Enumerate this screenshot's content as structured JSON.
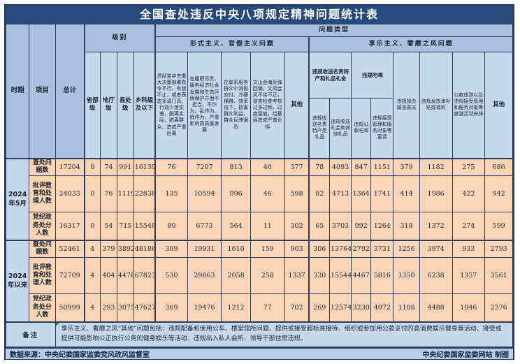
{
  "title": "全国查处违反中央八项规定精神问题统计表",
  "chart_data": {
    "type": "table",
    "title": "全国查处违反中央八项规定精神问题统计表",
    "header": {
      "period": "时期",
      "item": "项目",
      "total": "总计",
      "level": {
        "label": "级别",
        "columns": [
          "省部级",
          "地厅级",
          "县处级",
          "乡科级及以下"
        ]
      },
      "problem_type": {
        "label": "问题类型",
        "groups": [
          {
            "label": "形式主义、官僚主义问题",
            "columns": [
              "贯彻党中央重大决策部署有令不行、有禁不止，或者表态多调门高、行动少落实差，脱离实际、脱离群众，造成严重后果",
              "在履职尽责、服务经济社会发展和生态环境保护方面不担当、不作为、乱作为、假作为，严重影响高质量发展",
              "在联系服务群众中消极应付、冷硬横推、效率低下，损害群众利益，群众反映强烈",
              "文山会海反弹回潮，文风会风不实不正，督查检查考核过多过频、过度留痕，给基层造成严重负担",
              "其他"
            ]
          },
          {
            "label": "享乐主义、奢靡之风问题",
            "subgroups": [
              {
                "label": "违规收送名贵特产和礼品礼金",
                "columns": [
                  "违规收送名贵特产类礼品",
                  "违规收送礼金和其他礼品"
                ]
              },
              {
                "label": "违规吃喝",
                "columns": [
                  "违规公款吃喝",
                  "违规接受管理和服务对象等宴请"
                ]
              }
            ],
            "columns": [
              "违规操办婚丧喜庆",
              "违规发放津补贴或福利",
              "公款旅游以及违规接受管理和服务对象等旅游活动安排",
              "其他"
            ]
          }
        ]
      }
    },
    "row_groups": [
      {
        "period": "2024年5月",
        "rows": [
          {
            "label": "查处问题数",
            "values": [
              17204,
              0,
              74,
              991,
              16139,
              76,
              7207,
              813,
              40,
              377,
              78,
              4093,
              847,
              1151,
              379,
              1182,
              275,
              686
            ]
          },
          {
            "label": "批评教育和处理人数",
            "values": [
              24033,
              0,
              76,
              1119,
              22838,
              135,
              10594,
              996,
              46,
              598,
              82,
              4713,
              1364,
              1741,
              414,
              1986,
              422,
              942
            ]
          },
          {
            "label": "党纪政务处分人数",
            "values": [
              16317,
              0,
              54,
              715,
              15548,
              80,
              6773,
              564,
              11,
              302,
              65,
              3703,
              992,
              1264,
              318,
              1372,
              274,
              599
            ]
          }
        ]
      },
      {
        "period": "2024年以来",
        "rows": [
          {
            "label": "查处问题数",
            "values": [
              52461,
              4,
              379,
              3892,
              48186,
              309,
              19931,
              1610,
              159,
              903,
              306,
              13764,
              2792,
              3731,
              1256,
              3974,
              933,
              2793
            ]
          },
          {
            "label": "批评教育和处理人数",
            "values": [
              72709,
              4,
              404,
              4478,
              67823,
              530,
              29863,
              2058,
              258,
              1337,
              330,
              15544,
              4467,
              5816,
              1350,
              6238,
              1357,
              3561
            ]
          },
          {
            "label": "党纪政务处分人数",
            "values": [
              50999,
              4,
              293,
              3075,
              47627,
              369,
              19476,
              1212,
              77,
              702,
              269,
              12574,
              3230,
              4072,
              1108,
              4488,
              1046,
              2376
            ]
          }
        ]
      }
    ]
  },
  "remark": {
    "label": "备注",
    "text": "享乐主义、奢靡之风“其他”问题包括：违规配备和使用公车、楼堂馆所问题、提供或接受超标准接待、组织或参加用公款支付的高消费娱乐健身等活动、接受或提供可能影响公正执行公务的健身娱乐等活动、违规出入私人会所、领导干部住房违规。"
  },
  "footer": {
    "source": "数据来源：中央纪委国家监委党风政风监督室",
    "credit": "中央纪委国家监委网站 制图"
  },
  "colors": {
    "frame": "#1F3864",
    "title_bg": "#27497C",
    "header_medium": "#A9C0DE",
    "header_light": "#C5D8EE",
    "data_bg": "#FBD5B5",
    "footer_bg": "#B9CEE8",
    "remark_marker": "#2E8B33"
  }
}
